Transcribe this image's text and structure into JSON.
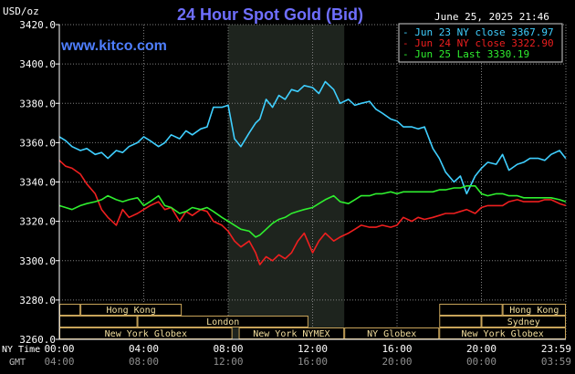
{
  "header": {
    "title": "24 Hour Spot Gold (Bid)",
    "unit_label": "USD/oz",
    "timestamp": "June 25, 2025 21:46",
    "watermark": "www.kitco.com"
  },
  "colors": {
    "background": "#000000",
    "grid": "#7f7f7f",
    "title": "#6f6fff",
    "watermark": "#4f7fff",
    "legend_box_border": "#cfcfcf",
    "jun23": "#3fcfff",
    "jun24": "#ef1f1f",
    "jun25": "#2fef2f",
    "market_box_fill": "#000000",
    "market_box_border": "#c8a45a",
    "market_text": "#f3df9e",
    "night_shade": "#1e241e"
  },
  "legend": [
    {
      "label": "Jun 23 NY close 3367.97",
      "color_key": "jun23"
    },
    {
      "label": "Jun 24 NY close 3322.90",
      "color_key": "jun24"
    },
    {
      "label": "Jun 25 Last 3330.19",
      "color_key": "jun25"
    }
  ],
  "axis": {
    "y_ticks": [
      "3420.0",
      "3400.0",
      "3380.0",
      "3360.0",
      "3340.0",
      "3320.0",
      "3300.0",
      "3280.0",
      "3260.0"
    ],
    "y_values": [
      3420,
      3400,
      3380,
      3360,
      3340,
      3320,
      3300,
      3280,
      3260
    ],
    "ny_label": "NY Time",
    "gmt_label": "GMT",
    "ny_ticks": [
      "00:00",
      "04:00",
      "08:00",
      "12:00",
      "16:00",
      "20:00",
      "23:59"
    ],
    "gmt_ticks": [
      "04:00",
      "08:00",
      "12:00",
      "16:00",
      "20:00",
      "00:00",
      "03:59"
    ]
  },
  "markets": [
    {
      "label": "Hong Kong",
      "row": 0,
      "start_h": 1.0,
      "end_h": 5.8
    },
    {
      "label": "London",
      "row": 1,
      "start_h": 3.7,
      "end_h": 11.8
    },
    {
      "label": "New York Globex",
      "row": 2,
      "start_h": 0.0,
      "end_h": 8.2
    },
    {
      "label": "New York NYMEX",
      "row": 2,
      "start_h": 8.5,
      "end_h": 13.5
    },
    {
      "label": "NY Globex",
      "row": 2,
      "start_h": 13.5,
      "end_h": 18.0
    },
    {
      "label": "Hong Kong",
      "row": 0,
      "start_h": 21.0,
      "end_h": 24.0
    },
    {
      "label": "Sydney",
      "row": 1,
      "start_h": 20.0,
      "end_h": 24.0
    },
    {
      "label": "New York Globex",
      "row": 2,
      "start_h": 18.0,
      "end_h": 24.0
    },
    {
      "label": "",
      "row": 1,
      "start_h": 0.0,
      "end_h": 3.7
    },
    {
      "label": "",
      "row": 1,
      "start_h": 18.0,
      "end_h": 20.0
    },
    {
      "label": "",
      "row": 0,
      "start_h": 0.0,
      "end_h": 1.0
    },
    {
      "label": "",
      "row": 0,
      "start_h": 18.0,
      "end_h": 21.0
    }
  ],
  "chart_data": {
    "type": "line",
    "title": "24 Hour Spot Gold (Bid)",
    "ylabel": "USD/oz",
    "xlabel": "NY Time / GMT",
    "xlim": [
      0,
      24
    ],
    "ylim": [
      3260,
      3420
    ],
    "grid": true,
    "legend_position": "top-right",
    "shaded_region_hours": [
      8.0,
      13.5
    ],
    "series": [
      {
        "name": "Jun 23 NY close 3367.97",
        "color_key": "jun23",
        "x": [
          0.0,
          0.3,
          0.6,
          1.0,
          1.3,
          1.7,
          2.0,
          2.3,
          2.7,
          3.0,
          3.3,
          3.7,
          4.0,
          4.3,
          4.7,
          5.0,
          5.3,
          5.7,
          6.0,
          6.3,
          6.7,
          7.0,
          7.3,
          7.7,
          8.0,
          8.3,
          8.6,
          9.0,
          9.3,
          9.5,
          9.8,
          10.1,
          10.4,
          10.7,
          11.0,
          11.3,
          11.6,
          12.0,
          12.3,
          12.6,
          13.0,
          13.3,
          13.7,
          14.0,
          14.3,
          14.7,
          15.0,
          15.3,
          15.7,
          16.0,
          16.3,
          16.7,
          17.0,
          17.3,
          17.7,
          18.0,
          18.3,
          18.7,
          19.0,
          19.3,
          19.7,
          20.0,
          20.3,
          20.7,
          21.0,
          21.3,
          21.7,
          22.0,
          22.3,
          22.7,
          23.0,
          23.3,
          23.7,
          23.99
        ],
        "y": [
          3363,
          3361,
          3358,
          3356,
          3357,
          3354,
          3355,
          3352,
          3356,
          3355,
          3358,
          3360,
          3363,
          3361,
          3358,
          3360,
          3364,
          3362,
          3366,
          3364,
          3367,
          3368,
          3378,
          3378,
          3379,
          3362,
          3358,
          3365,
          3370,
          3372,
          3382,
          3378,
          3384,
          3382,
          3387,
          3386,
          3389,
          3388,
          3385,
          3391,
          3387,
          3380,
          3382,
          3379,
          3380,
          3381,
          3377,
          3375,
          3372,
          3371,
          3368,
          3368,
          3367,
          3368,
          3357,
          3352,
          3345,
          3340,
          3343,
          3334,
          3343,
          3347,
          3350,
          3349,
          3354,
          3346,
          3349,
          3350,
          3352,
          3352,
          3351,
          3354,
          3356,
          3352
        ]
      },
      {
        "name": "Jun 24 NY close 3322.90",
        "color_key": "jun24",
        "x": [
          0.0,
          0.3,
          0.6,
          1.0,
          1.3,
          1.7,
          2.0,
          2.3,
          2.7,
          3.0,
          3.3,
          3.7,
          4.0,
          4.3,
          4.7,
          5.0,
          5.3,
          5.7,
          6.0,
          6.3,
          6.7,
          7.0,
          7.3,
          7.7,
          8.0,
          8.3,
          8.6,
          9.0,
          9.3,
          9.5,
          9.8,
          10.1,
          10.4,
          10.7,
          11.0,
          11.3,
          11.6,
          12.0,
          12.3,
          12.6,
          13.0,
          13.3,
          13.7,
          14.0,
          14.3,
          14.7,
          15.0,
          15.3,
          15.7,
          16.0,
          16.3,
          16.7,
          17.0,
          17.3,
          17.7,
          18.0,
          18.3,
          18.7,
          19.0,
          19.3,
          19.7,
          20.0,
          20.3,
          20.7,
          21.0,
          21.3,
          21.7,
          22.0,
          22.3,
          22.7,
          23.0,
          23.3,
          23.7,
          23.99
        ],
        "y": [
          3351,
          3348,
          3347,
          3344,
          3339,
          3334,
          3326,
          3322,
          3318,
          3326,
          3322,
          3324,
          3326,
          3328,
          3330,
          3326,
          3327,
          3320,
          3325,
          3323,
          3326,
          3325,
          3320,
          3318,
          3315,
          3310,
          3307,
          3310,
          3304,
          3298,
          3302,
          3300,
          3303,
          3301,
          3304,
          3310,
          3314,
          3304,
          3310,
          3314,
          3310,
          3312,
          3314,
          3316,
          3318,
          3317,
          3317,
          3318,
          3317,
          3318,
          3322,
          3320,
          3322,
          3321,
          3322,
          3323,
          3324,
          3324,
          3325,
          3326,
          3324,
          3327,
          3328,
          3328,
          3328,
          3330,
          3331,
          3330,
          3330,
          3330,
          3331,
          3331,
          3329,
          3328
        ]
      },
      {
        "name": "Jun 25 Last 3330.19",
        "color_key": "jun25",
        "x": [
          0.0,
          0.3,
          0.6,
          1.0,
          1.3,
          1.7,
          2.0,
          2.3,
          2.7,
          3.0,
          3.3,
          3.7,
          4.0,
          4.3,
          4.7,
          5.0,
          5.3,
          5.7,
          6.0,
          6.3,
          6.7,
          7.0,
          7.3,
          7.7,
          8.0,
          8.3,
          8.6,
          9.0,
          9.3,
          9.5,
          9.8,
          10.1,
          10.4,
          10.7,
          11.0,
          11.3,
          11.6,
          12.0,
          12.3,
          12.6,
          13.0,
          13.3,
          13.7,
          14.0,
          14.3,
          14.7,
          15.0,
          15.3,
          15.7,
          16.0,
          16.3,
          16.7,
          17.0,
          17.3,
          17.7,
          18.0,
          18.3,
          18.7,
          19.0,
          19.3,
          19.7,
          20.0,
          20.3,
          20.7,
          21.0,
          21.3,
          21.7,
          22.0,
          22.3,
          22.7,
          23.0,
          23.3,
          23.7,
          23.99
        ],
        "y": [
          3328,
          3327,
          3326,
          3328,
          3329,
          3330,
          3331,
          3333,
          3331,
          3330,
          3331,
          3332,
          3328,
          3330,
          3333,
          3328,
          3327,
          3324,
          3325,
          3327,
          3326,
          3327,
          3325,
          3322,
          3320,
          3318,
          3316,
          3315,
          3312,
          3313,
          3316,
          3319,
          3321,
          3322,
          3324,
          3325,
          3326,
          3327,
          3329,
          3331,
          3333,
          3330,
          3329,
          3331,
          3333,
          3333,
          3334,
          3334,
          3335,
          3334,
          3335,
          3335,
          3335,
          3335,
          3335,
          3336,
          3336,
          3337,
          3337,
          3338,
          3338,
          3334,
          3333,
          3334,
          3334,
          3333,
          3333,
          3332,
          3332,
          3332,
          3332,
          3332,
          3331,
          3330
        ]
      }
    ]
  }
}
